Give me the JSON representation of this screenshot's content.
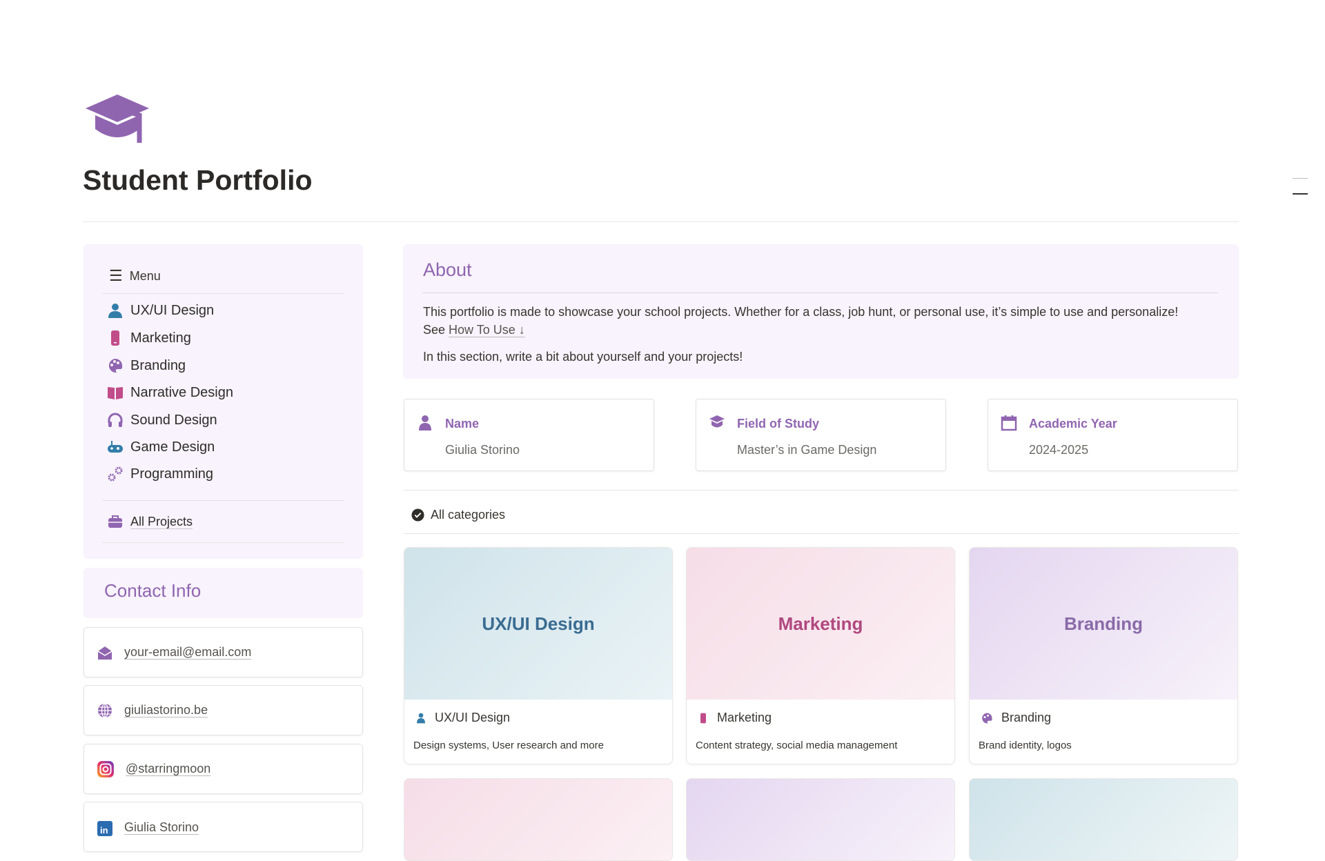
{
  "page": {
    "title": "Student Portfolio",
    "icon": "graduation-cap-icon"
  },
  "menu": {
    "label": "Menu",
    "items": [
      {
        "label": "UX/UI Design",
        "icon": "person-icon",
        "color": "#337ea9"
      },
      {
        "label": "Marketing",
        "icon": "phone-icon",
        "color": "#c14c8a"
      },
      {
        "label": "Branding",
        "icon": "palette-icon",
        "color": "#9065b0"
      },
      {
        "label": "Narrative Design",
        "icon": "book-icon",
        "color": "#c14c8a"
      },
      {
        "label": "Sound Design",
        "icon": "headphones-icon",
        "color": "#9065b0"
      },
      {
        "label": "Game Design",
        "icon": "gamepad-icon",
        "color": "#337ea9"
      },
      {
        "label": "Programming",
        "icon": "gears-icon",
        "color": "#9065b0"
      }
    ],
    "all_projects": "All Projects"
  },
  "contact": {
    "title": "Contact Info",
    "items": [
      {
        "label": "your-email@email.com",
        "icon": "envelope-open-icon"
      },
      {
        "label": "giuliastorino.be",
        "icon": "globe-icon"
      },
      {
        "label": "@starringmoon",
        "icon": "instagram-icon"
      },
      {
        "label": "Giulia Storino",
        "icon": "linkedin-icon"
      }
    ]
  },
  "about": {
    "title": "About",
    "p1": "This portfolio is made to showcase your school projects. Whether for a class, job hunt, or personal use, it’s simple to use and personalize! See ",
    "link": "How To Use ↓",
    "p2": "In this section, write a bit about yourself and your projects!"
  },
  "info": [
    {
      "label": "Name",
      "value": "Giulia Storino",
      "icon": "person-icon"
    },
    {
      "label": "Field of Study",
      "value": "Master’s in Game Design",
      "icon": "graduation-cap-icon"
    },
    {
      "label": "Academic Year",
      "value": "2024-2025",
      "icon": "calendar-icon"
    }
  ],
  "gallery": {
    "view": "All categories",
    "cards": [
      {
        "cover": "UX/UI Design",
        "name": "UX/UI Design",
        "desc": "Design systems, User research and more",
        "color": "#3a6c91"
      },
      {
        "cover": "Marketing",
        "name": "Marketing",
        "desc": "Content strategy, social media management",
        "color": "#b0487f"
      },
      {
        "cover": "Branding",
        "name": "Branding",
        "desc": "Brand identity, logos",
        "color": "#8a6aa8"
      }
    ]
  },
  "colors": {
    "accent": "#9065b0",
    "panel": "#f8f3fc"
  }
}
